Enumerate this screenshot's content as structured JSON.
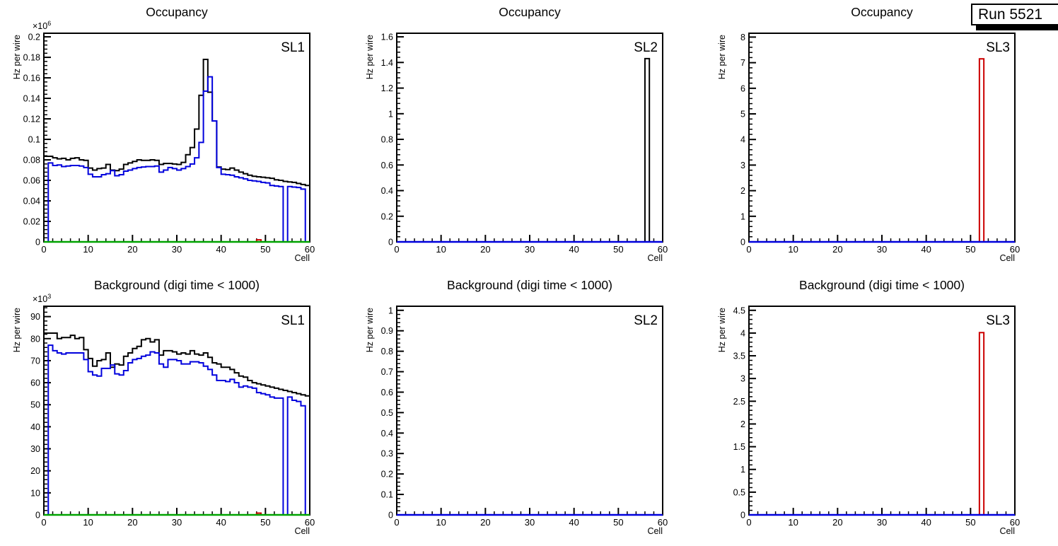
{
  "canvas": {
    "run_label": "Run 5521",
    "background": "#ffffff"
  },
  "colors": {
    "black": "#000000",
    "blue": "#0000dd",
    "red": "#cc0000",
    "green": "#00a300",
    "frame": "#000000"
  },
  "chart_data": [
    {
      "type": "bar",
      "id": "occupancy-sl1",
      "title": "Occupancy",
      "corner_label": "SL1",
      "xlabel": "Cell",
      "ylabel": "Hz per wire",
      "y_multiplier": {
        "mant": "×10",
        "exp": "6"
      },
      "x_axis": {
        "min": 0,
        "max": 60,
        "major_labels": [
          "0",
          "10",
          "20",
          "30",
          "40",
          "50",
          "60"
        ],
        "minor_step": 2
      },
      "y_axis": {
        "max": 0.2035,
        "major_labels": [
          "0",
          "0.02",
          "0.04",
          "0.06",
          "0.08",
          "0.1",
          "0.12",
          "0.14",
          "0.16",
          "0.18",
          "0.2"
        ],
        "minor_step": 0.004
      },
      "series": [
        {
          "name": "histogram-black",
          "type": "steps",
          "color": "black",
          "values": [
            0.0835,
            0.0835,
            0.082,
            0.081,
            0.0815,
            0.08,
            0.0815,
            0.082,
            0.08,
            0.0795,
            0.072,
            0.07,
            0.0715,
            0.072,
            0.0755,
            0.07,
            0.0695,
            0.071,
            0.0755,
            0.077,
            0.0785,
            0.08,
            0.0795,
            0.0795,
            0.08,
            0.0795,
            0.0755,
            0.0765,
            0.0765,
            0.076,
            0.0755,
            0.0775,
            0.085,
            0.092,
            0.11,
            0.143,
            0.178,
            0.146,
            0.118,
            0.073,
            0.071,
            0.0705,
            0.072,
            0.07,
            0.068,
            0.0665,
            0.065,
            0.064,
            0.0635,
            0.063,
            0.0625,
            0.062,
            0.0605,
            0.06,
            0.059,
            0.0585,
            0.058,
            0.057,
            0.056,
            0.055
          ]
        },
        {
          "name": "histogram-blue",
          "type": "steps",
          "color": "blue",
          "values": [
            0,
            0.077,
            0.0745,
            0.075,
            0.0735,
            0.074,
            0.0745,
            0.0745,
            0.074,
            0.0725,
            0.066,
            0.0635,
            0.0635,
            0.0655,
            0.0665,
            0.0695,
            0.0645,
            0.0655,
            0.069,
            0.07,
            0.0715,
            0.0725,
            0.073,
            0.0735,
            0.0735,
            0.074,
            0.068,
            0.07,
            0.0725,
            0.0715,
            0.07,
            0.0715,
            0.0735,
            0.076,
            0.082,
            0.097,
            0.147,
            0.161,
            0.118,
            0.0725,
            0.066,
            0.0655,
            0.065,
            0.0635,
            0.0625,
            0.0615,
            0.06,
            0.0595,
            0.059,
            0.058,
            0.0575,
            0.055,
            0.0545,
            0.054,
            0,
            0.054,
            0.0535,
            0.053,
            0.0515,
            0
          ]
        },
        {
          "name": "histogram-red",
          "type": "bar",
          "color": "red",
          "bin": 48,
          "value": 0.002
        },
        {
          "name": "histogram-green",
          "type": "flat",
          "color": "green",
          "value": 0
        }
      ]
    },
    {
      "type": "bar",
      "id": "occupancy-sl2",
      "title": "Occupancy",
      "corner_label": "SL2",
      "xlabel": "Cell",
      "ylabel": "Hz per wire",
      "y_multiplier": null,
      "x_axis": {
        "min": 0,
        "max": 60,
        "major_labels": [
          "0",
          "10",
          "20",
          "30",
          "40",
          "50",
          "60"
        ],
        "minor_step": 2
      },
      "y_axis": {
        "max": 1.628,
        "major_labels": [
          "0",
          "0.2",
          "0.4",
          "0.6",
          "0.8",
          "1",
          "1.2",
          "1.4",
          "1.6"
        ],
        "minor_step": 0.04
      },
      "series": [
        {
          "name": "histogram-black",
          "type": "bar",
          "color": "black",
          "bin": 56,
          "value": 1.43
        },
        {
          "name": "histogram-blue",
          "type": "flat",
          "color": "blue",
          "value": 0
        }
      ]
    },
    {
      "type": "bar",
      "id": "occupancy-sl3",
      "title": "Occupancy",
      "corner_label": "SL3",
      "xlabel": "Cell",
      "ylabel": "Hz per wire",
      "y_multiplier": null,
      "x_axis": {
        "min": 0,
        "max": 60,
        "major_labels": [
          "0",
          "10",
          "20",
          "30",
          "40",
          "50",
          "60"
        ],
        "minor_step": 2
      },
      "y_axis": {
        "max": 8.15,
        "major_labels": [
          "0",
          "1",
          "2",
          "3",
          "4",
          "5",
          "6",
          "7",
          "8"
        ],
        "minor_step": 0.2
      },
      "series": [
        {
          "name": "histogram-red",
          "type": "bar",
          "color": "red",
          "bin": 52,
          "value": 7.15
        },
        {
          "name": "histogram-blue",
          "type": "flat",
          "color": "blue",
          "value": 0
        }
      ]
    },
    {
      "type": "bar",
      "id": "background-sl1",
      "title": "Background (digi time < 1000)",
      "corner_label": "SL1",
      "xlabel": "Cell",
      "ylabel": "Hz per wire",
      "y_multiplier": {
        "mant": "×10",
        "exp": "3"
      },
      "x_axis": {
        "min": 0,
        "max": 60,
        "major_labels": [
          "0",
          "10",
          "20",
          "30",
          "40",
          "50",
          "60"
        ],
        "minor_step": 2
      },
      "y_axis": {
        "max": 94.7,
        "major_labels": [
          "0",
          "10",
          "20",
          "30",
          "40",
          "50",
          "60",
          "70",
          "80",
          "90"
        ],
        "minor_step": 2
      },
      "series": [
        {
          "name": "histogram-black",
          "type": "steps",
          "color": "black",
          "values": [
            82.5,
            82.5,
            82.5,
            80,
            80.5,
            80.5,
            81.5,
            80,
            80.5,
            75,
            71,
            67.5,
            70,
            70.5,
            73.5,
            67,
            68.5,
            68,
            72,
            73.5,
            75.5,
            76.5,
            79.5,
            80,
            78.5,
            79.5,
            72.5,
            74.5,
            74.5,
            74,
            73,
            73.5,
            73,
            74.5,
            73,
            72.5,
            73.5,
            71.5,
            69,
            68.5,
            67,
            67,
            66,
            64.5,
            63,
            62.5,
            61,
            60,
            59.5,
            59,
            58.5,
            58,
            57.5,
            57,
            56.5,
            56,
            55.5,
            55,
            54.5,
            54
          ]
        },
        {
          "name": "histogram-blue",
          "type": "steps",
          "color": "blue",
          "values": [
            0,
            77,
            74.5,
            73.5,
            73,
            73.5,
            73.5,
            73.5,
            73.5,
            70.5,
            65,
            63.5,
            63,
            66.5,
            66.5,
            68,
            64,
            63.5,
            65.5,
            69,
            70.5,
            71,
            72,
            72.5,
            74,
            73.5,
            68.5,
            67,
            70.5,
            70.5,
            70,
            68.5,
            68.5,
            69.5,
            69.5,
            69,
            67.5,
            66,
            63.5,
            61,
            61,
            60.5,
            61.5,
            60,
            58,
            58.5,
            58,
            57.5,
            55.5,
            55,
            54.5,
            53.5,
            53,
            53,
            0,
            53.5,
            52,
            51.5,
            49.5,
            0
          ]
        },
        {
          "name": "histogram-red",
          "type": "bar",
          "color": "red",
          "bin": 48,
          "value": 0.8
        },
        {
          "name": "histogram-green",
          "type": "flat",
          "color": "green",
          "value": 0
        }
      ]
    },
    {
      "type": "bar",
      "id": "background-sl2",
      "title": "Background (digi time < 1000)",
      "corner_label": "SL2",
      "xlabel": "Cell",
      "ylabel": "Hz per wire",
      "y_multiplier": null,
      "x_axis": {
        "min": 0,
        "max": 60,
        "major_labels": [
          "0",
          "10",
          "20",
          "30",
          "40",
          "50",
          "60"
        ],
        "minor_step": 2
      },
      "y_axis": {
        "max": 1.02,
        "major_labels": [
          "0",
          "0.1",
          "0.2",
          "0.3",
          "0.4",
          "0.5",
          "0.6",
          "0.7",
          "0.8",
          "0.9",
          "1"
        ],
        "minor_step": 0.02
      },
      "series": [
        {
          "name": "histogram-blue",
          "type": "flat",
          "color": "blue",
          "value": 0
        }
      ]
    },
    {
      "type": "bar",
      "id": "background-sl3",
      "title": "Background (digi time < 1000)",
      "corner_label": "SL3",
      "xlabel": "Cell",
      "ylabel": "Hz per wire",
      "y_multiplier": null,
      "x_axis": {
        "min": 0,
        "max": 60,
        "major_labels": [
          "0",
          "10",
          "20",
          "30",
          "40",
          "50",
          "60"
        ],
        "minor_step": 2
      },
      "y_axis": {
        "max": 4.59,
        "major_labels": [
          "0",
          "0.5",
          "1",
          "1.5",
          "2",
          "2.5",
          "3",
          "3.5",
          "4",
          "4.5"
        ],
        "minor_step": 0.1
      },
      "series": [
        {
          "name": "histogram-red",
          "type": "bar",
          "color": "red",
          "bin": 52,
          "value": 4.01
        },
        {
          "name": "histogram-blue",
          "type": "flat",
          "color": "blue",
          "value": 0
        }
      ]
    }
  ]
}
